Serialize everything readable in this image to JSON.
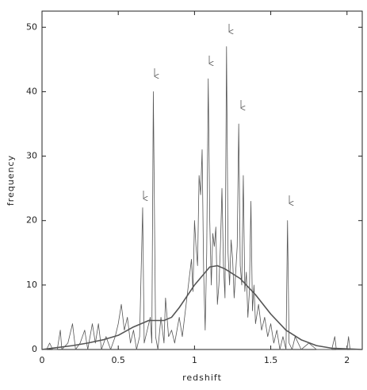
{
  "chart_data": {
    "type": "line",
    "xlabel": "redshift",
    "ylabel": "frequency",
    "xlim": [
      0,
      2.1
    ],
    "ylim": [
      0,
      52.5
    ],
    "xticks": [
      0,
      0.5,
      1,
      1.5,
      2
    ],
    "yticks": [
      0,
      10,
      20,
      30,
      40,
      50
    ],
    "series": [
      {
        "color": "#555555",
        "x": [
          0,
          0.03,
          0.05,
          0.07,
          0.1,
          0.12,
          0.13,
          0.17,
          0.2,
          0.22,
          0.25,
          0.28,
          0.3,
          0.33,
          0.35,
          0.37,
          0.39,
          0.42,
          0.45,
          0.48,
          0.5,
          0.52,
          0.54,
          0.56,
          0.58,
          0.6,
          0.62,
          0.64,
          0.66,
          0.67,
          0.69,
          0.71,
          0.72,
          0.73,
          0.745,
          0.76,
          0.78,
          0.8,
          0.81,
          0.83,
          0.85,
          0.87,
          0.9,
          0.92,
          0.94,
          0.96,
          0.98,
          0.99,
          1.0,
          1.01,
          1.02,
          1.03,
          1.04,
          1.05,
          1.06,
          1.07,
          1.08,
          1.09,
          1.1,
          1.11,
          1.12,
          1.13,
          1.14,
          1.15,
          1.16,
          1.17,
          1.18,
          1.19,
          1.2,
          1.21,
          1.22,
          1.23,
          1.24,
          1.25,
          1.26,
          1.27,
          1.28,
          1.29,
          1.3,
          1.31,
          1.32,
          1.33,
          1.34,
          1.35,
          1.36,
          1.37,
          1.38,
          1.39,
          1.4,
          1.42,
          1.44,
          1.46,
          1.48,
          1.5,
          1.52,
          1.54,
          1.56,
          1.58,
          1.6,
          1.61,
          1.62,
          1.64,
          1.66,
          1.7,
          1.75,
          1.8,
          1.9,
          1.92,
          1.93,
          2.0,
          2.01,
          2.02,
          2.1
        ],
        "values": [
          0,
          0,
          1,
          0,
          0,
          3,
          0,
          1,
          4,
          0,
          1,
          3,
          0,
          4,
          1,
          4,
          0,
          2,
          0,
          2,
          4,
          7,
          3,
          5,
          1,
          3,
          0,
          2,
          22,
          1,
          3,
          5,
          1,
          40,
          2,
          0,
          5,
          1,
          8,
          2,
          3,
          1,
          5,
          2,
          6,
          10,
          14,
          9,
          20,
          16,
          13,
          27,
          24,
          31,
          12,
          3,
          15,
          42,
          20,
          10,
          18,
          16,
          19,
          7,
          10,
          16,
          25,
          13,
          8,
          47,
          15,
          10,
          17,
          14,
          8,
          12,
          16,
          35,
          13,
          10,
          27,
          9,
          12,
          5,
          9,
          23,
          6,
          10,
          4,
          7,
          3,
          5,
          2,
          4,
          1,
          3,
          0,
          2,
          0,
          20,
          1,
          0,
          2,
          0,
          1,
          0,
          0,
          2,
          0,
          0,
          2,
          0,
          0
        ]
      },
      {
        "color": "#555555",
        "x": [
          0,
          0.1,
          0.2,
          0.3,
          0.4,
          0.5,
          0.6,
          0.7,
          0.8,
          0.85,
          0.9,
          1.0,
          1.1,
          1.15,
          1.2,
          1.3,
          1.4,
          1.5,
          1.6,
          1.7,
          1.8,
          1.9,
          2.0,
          2.1
        ],
        "values": [
          0,
          0.3,
          0.6,
          1,
          1.5,
          2.2,
          3.5,
          4.5,
          4.5,
          5,
          6.5,
          10,
          12.8,
          13,
          12.5,
          11,
          8.5,
          5.5,
          3,
          1.5,
          0.6,
          0.2,
          0.1,
          0
        ]
      }
    ]
  }
}
